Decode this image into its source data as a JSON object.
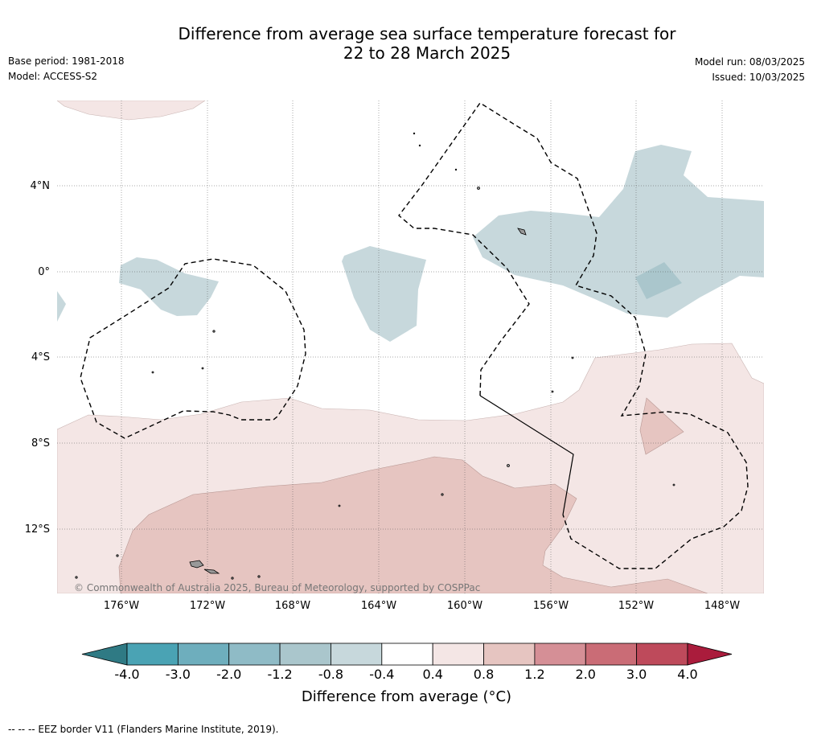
{
  "title_line1": "Difference from average sea surface temperature forecast for",
  "title_line2": "22 to 28 March 2025",
  "base_period": "Base period: 1981-2018",
  "model": "Model: ACCESS-S2",
  "model_run": "Model run: 08/03/2025",
  "issued": "Issued: 10/03/2025",
  "copyright": "© Commonwealth of Australia 2025, Bureau of Meteorology, supported by COSPPac",
  "lat_labels": [
    "4°N",
    "0°",
    "4°S",
    "8°S",
    "12°S"
  ],
  "lon_labels": [
    "176°W",
    "172°W",
    "168°W",
    "164°W",
    "160°W",
    "156°W",
    "152°W",
    "148°W"
  ],
  "colorbar": {
    "ticks": [
      "-4.0",
      "-3.0",
      "-2.0",
      "-1.2",
      "-0.8",
      "-0.4",
      "0.4",
      "0.8",
      "1.2",
      "2.0",
      "3.0",
      "4.0"
    ],
    "colors": [
      "#2f7a84",
      "#4aa3b4",
      "#6eaebd",
      "#8fbbc6",
      "#aac6cc",
      "#c7d8dc",
      "#ffffff",
      "#f4e6e5",
      "#e6c5c1",
      "#d58f96",
      "#ca6c76",
      "#be4a5b",
      "#aa1c3c"
    ],
    "label": "Difference from average (°C)"
  },
  "legend_footer": "-- -- -- EEZ border V11 (Flanders Marine Institute, 2019).",
  "map_colors": {
    "cool_light": "#c7d8dc",
    "cool_mid": "#aac6cc",
    "warm_light": "#f4e6e5",
    "warm_mid": "#e6c5c1"
  }
}
